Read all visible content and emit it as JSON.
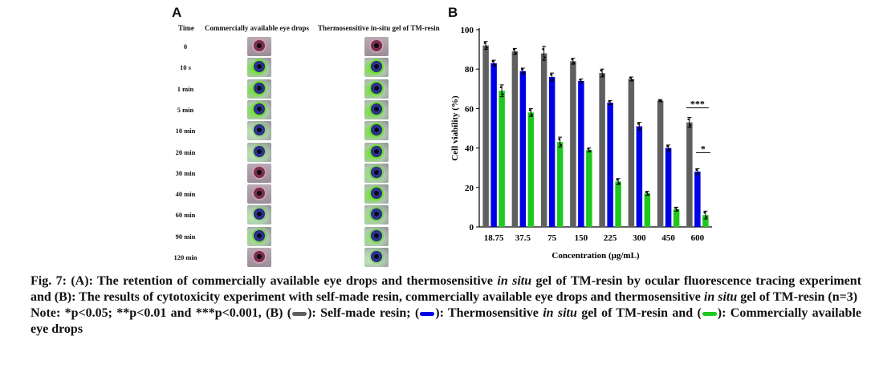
{
  "panel_a": {
    "letter": "A",
    "time_header": "Time",
    "col1_header": "Commercially  available  eye drops",
    "col2_header": "Thermosensitive  in-situ  gel of TM-resin",
    "times": [
      "0",
      "10 s",
      "1 min",
      "5 min",
      "10 min",
      "20 min",
      "30 min",
      "40 min",
      "60 min",
      "90 min",
      "120 min"
    ],
    "col1_fluorescence": [
      "none",
      "high",
      "high",
      "high",
      "low",
      "low",
      "none",
      "none",
      "low",
      "medium",
      "none"
    ],
    "col2_fluorescence": [
      "none",
      "high",
      "high",
      "high",
      "high",
      "high",
      "medium",
      "high",
      "medium",
      "medium",
      "low"
    ]
  },
  "panel_b": {
    "letter": "B"
  },
  "chart_data": {
    "type": "bar",
    "categories": [
      "18.75",
      "37.5",
      "75",
      "150",
      "225",
      "300",
      "450",
      "600"
    ],
    "series": [
      {
        "color": "#5f5f5f",
        "values": [
          92,
          89,
          88,
          84,
          78,
          75,
          64,
          53
        ],
        "errors": [
          2,
          1.5,
          3.5,
          1.5,
          2,
          1,
          0.5,
          2.5
        ]
      },
      {
        "color": "#0000e6",
        "values": [
          83,
          79,
          76,
          74,
          63,
          51,
          40,
          28
        ],
        "errors": [
          1.5,
          1.5,
          2,
          1,
          1,
          2,
          1.5,
          1.5
        ]
      },
      {
        "color": "#1fc81f",
        "values": [
          69,
          58,
          43,
          39,
          23,
          17,
          9,
          6
        ],
        "errors": [
          3,
          2,
          2.5,
          1,
          1.5,
          1,
          1,
          2
        ]
      }
    ],
    "xlabel": "Concentration (μg/mL)",
    "ylabel": "Cell viability (%)",
    "ylim": [
      0,
      100
    ],
    "yticks": [
      "0",
      "20",
      "40",
      "60",
      "80",
      "100"
    ],
    "annotations": [
      "***",
      "*"
    ],
    "grid": false
  },
  "caption": {
    "line1_a": "Fig. 7: (A): The retention of commercially available eye drops and thermosensitive ",
    "line1_i": "in situ",
    "line1_b": " gel of TM-resin by ocular fluorescence tracing experiment and (B): The results of cytotoxicity experiment with self-made resin, commercially available eye drops and thermosensitive ",
    "line1_i2": "in situ",
    "line1_c": " gel of TM-resin (n=3)",
    "note_a": "Note: *p<0.05; **p<0.01 and ***p<0.001, (B) (",
    "note_b": "): Self-made resin; (",
    "note_c": "): Thermosensitive ",
    "note_i": "in situ",
    "note_d": " gel of TM-resin and (",
    "note_e": "): Commercially available eye drops",
    "swatch_colors": [
      "#5f5f5f",
      "#0000e6",
      "#1fc81f"
    ]
  }
}
